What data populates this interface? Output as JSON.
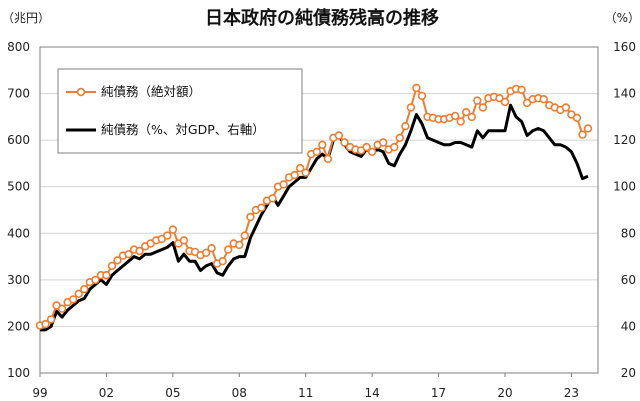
{
  "chart_data": {
    "type": "line",
    "title": "日本政府の純債務残高の推移",
    "left_unit": "（兆円）",
    "right_unit": "（%）",
    "x_tick_labels": [
      "99",
      "02",
      "05",
      "08",
      "11",
      "14",
      "17",
      "20",
      "23"
    ],
    "x_tick_years": [
      1999,
      2002,
      2005,
      2008,
      2011,
      2014,
      2017,
      2020,
      2023
    ],
    "xlim": [
      1999,
      2024.2
    ],
    "ylim_left": [
      100,
      800
    ],
    "y_ticks_left": [
      100,
      200,
      300,
      400,
      500,
      600,
      700,
      800
    ],
    "ylim_right": [
      20,
      160
    ],
    "y_ticks_right": [
      20,
      40,
      60,
      80,
      100,
      120,
      140,
      160
    ],
    "grid": "horizontal",
    "legend_position": "top-left",
    "colors": {
      "absolute": "#ed7d31",
      "ratio": "#000000"
    },
    "series": [
      {
        "name": "純債務（絶対額）",
        "axis": "left",
        "marker": "circle",
        "x": [
          1999.0,
          1999.25,
          1999.5,
          1999.75,
          2000.0,
          2000.25,
          2000.5,
          2000.75,
          2001.0,
          2001.25,
          2001.5,
          2001.75,
          2002.0,
          2002.25,
          2002.5,
          2002.75,
          2003.0,
          2003.25,
          2003.5,
          2003.75,
          2004.0,
          2004.25,
          2004.5,
          2004.75,
          2005.0,
          2005.25,
          2005.5,
          2005.75,
          2006.0,
          2006.25,
          2006.5,
          2006.75,
          2007.0,
          2007.25,
          2007.5,
          2007.75,
          2008.0,
          2008.25,
          2008.5,
          2008.75,
          2009.0,
          2009.25,
          2009.5,
          2009.75,
          2010.0,
          2010.25,
          2010.5,
          2010.75,
          2011.0,
          2011.25,
          2011.5,
          2011.75,
          2012.0,
          2012.25,
          2012.5,
          2012.75,
          2013.0,
          2013.25,
          2013.5,
          2013.75,
          2014.0,
          2014.25,
          2014.5,
          2014.75,
          2015.0,
          2015.25,
          2015.5,
          2015.75,
          2016.0,
          2016.25,
          2016.5,
          2016.75,
          2017.0,
          2017.25,
          2017.5,
          2017.75,
          2018.0,
          2018.25,
          2018.5,
          2018.75,
          2019.0,
          2019.25,
          2019.5,
          2019.75,
          2020.0,
          2020.25,
          2020.5,
          2020.75,
          2021.0,
          2021.25,
          2021.5,
          2021.75,
          2022.0,
          2022.25,
          2022.5,
          2022.75,
          2023.0,
          2023.25,
          2023.5,
          2023.75
        ],
        "values": [
          202,
          205,
          215,
          245,
          238,
          252,
          258,
          270,
          280,
          295,
          300,
          310,
          310,
          330,
          342,
          352,
          355,
          365,
          362,
          372,
          378,
          385,
          388,
          395,
          408,
          378,
          385,
          362,
          360,
          353,
          358,
          368,
          335,
          340,
          365,
          378,
          375,
          395,
          435,
          450,
          455,
          470,
          475,
          500,
          505,
          520,
          525,
          540,
          530,
          570,
          575,
          590,
          560,
          605,
          610,
          595,
          585,
          580,
          578,
          585,
          575,
          590,
          595,
          580,
          585,
          605,
          630,
          670,
          712,
          695,
          650,
          648,
          645,
          645,
          648,
          652,
          640,
          660,
          650,
          685,
          670,
          690,
          693,
          690,
          682,
          705,
          710,
          708,
          680,
          688,
          690,
          688,
          675,
          670,
          665,
          670,
          655,
          648,
          612,
          625
        ]
      },
      {
        "name": "純債務（%、対GDP、右軸）",
        "axis": "right",
        "marker": "none",
        "x": [
          1999.0,
          1999.25,
          1999.5,
          1999.75,
          2000.0,
          2000.25,
          2000.5,
          2000.75,
          2001.0,
          2001.25,
          2001.5,
          2001.75,
          2002.0,
          2002.25,
          2002.5,
          2002.75,
          2003.0,
          2003.25,
          2003.5,
          2003.75,
          2004.0,
          2004.25,
          2004.5,
          2004.75,
          2005.0,
          2005.25,
          2005.5,
          2005.75,
          2006.0,
          2006.25,
          2006.5,
          2006.75,
          2007.0,
          2007.25,
          2007.5,
          2007.75,
          2008.0,
          2008.25,
          2008.5,
          2008.75,
          2009.0,
          2009.25,
          2009.5,
          2009.75,
          2010.0,
          2010.25,
          2010.5,
          2010.75,
          2011.0,
          2011.25,
          2011.5,
          2011.75,
          2012.0,
          2012.25,
          2012.5,
          2012.75,
          2013.0,
          2013.25,
          2013.5,
          2013.75,
          2014.0,
          2014.25,
          2014.5,
          2014.75,
          2015.0,
          2015.25,
          2015.5,
          2015.75,
          2016.0,
          2016.25,
          2016.5,
          2016.75,
          2017.0,
          2017.25,
          2017.5,
          2017.75,
          2018.0,
          2018.25,
          2018.5,
          2018.75,
          2019.0,
          2019.25,
          2019.5,
          2019.75,
          2020.0,
          2020.25,
          2020.5,
          2020.75,
          2021.0,
          2021.25,
          2021.5,
          2021.75,
          2022.0,
          2022.25,
          2022.5,
          2022.75,
          2023.0,
          2023.25,
          2023.5,
          2023.75
        ],
        "values": [
          38.5,
          38.5,
          40,
          46.5,
          44,
          47,
          49,
          51,
          52,
          56,
          58,
          60,
          58,
          62,
          64,
          66,
          68,
          70,
          69,
          71,
          71,
          72,
          73,
          74,
          76,
          68,
          71,
          68,
          68,
          64,
          66,
          67,
          63,
          62,
          66,
          69,
          70,
          70,
          78,
          83,
          88,
          92,
          96,
          92,
          96,
          100,
          102,
          104,
          104,
          108,
          112,
          114,
          112,
          120,
          122,
          118,
          115,
          114,
          113,
          116,
          115,
          116,
          115,
          110,
          109,
          114,
          118,
          124,
          131,
          127,
          121,
          120,
          119,
          118,
          118,
          119,
          119,
          118,
          117,
          124,
          121,
          124,
          124,
          124,
          124,
          135,
          130,
          128,
          122,
          124,
          125,
          124,
          121,
          118,
          118,
          117,
          115,
          110,
          103.5,
          104.5
        ]
      }
    ]
  }
}
